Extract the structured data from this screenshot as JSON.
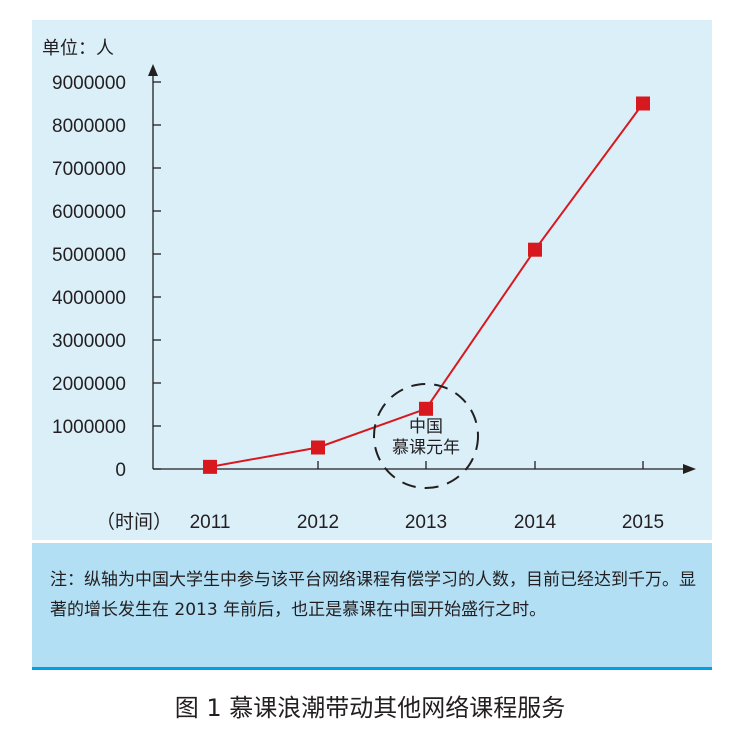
{
  "chart_data": {
    "type": "line",
    "unit_label": "单位：人",
    "x_axis_label": "（时间）",
    "categories": [
      "2011",
      "2012",
      "2013",
      "2014",
      "2015"
    ],
    "series": [
      {
        "values": [
          50000,
          500000,
          1400000,
          5100000,
          8500000
        ],
        "color": "#d7191f"
      }
    ],
    "yticks": [
      "0",
      "1000000",
      "2000000",
      "3000000",
      "4000000",
      "5000000",
      "6000000",
      "7000000",
      "8000000",
      "9000000"
    ],
    "ylim": [
      0,
      9000000
    ],
    "grid": false,
    "annotation": {
      "lines": [
        "中国",
        "慕课元年"
      ],
      "category": "2013"
    }
  },
  "note": "注：纵轴为中国大学生中参与该平台网络课程有偿学习的人数，目前已经达到千万。显著的增长发生在 2013 年前后，也正是慕课在中国开始盛行之时。",
  "caption": "图 1  慕课浪潮带动其他网络课程服务",
  "colors": {
    "panel": "#dbeff9",
    "note_bg": "#b2dff4",
    "note_border": "#00a0e9",
    "line": "#d7191f"
  }
}
